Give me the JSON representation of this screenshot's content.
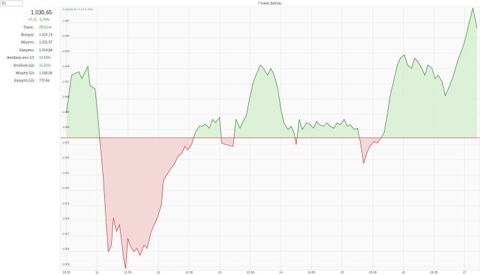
{
  "input_label": "Ετ.",
  "sidebar": {
    "last": "1.030,65",
    "change": "+7,21",
    "change_pct": "0,70%",
    "rows": [
      [
        "Όγκος:",
        "28,63 m"
      ],
      [
        "Άνοιγμα:",
        "1.022,74"
      ],
      [
        "Μέγιστη:",
        "1.031,97"
      ],
      [
        "Ελάχιστη:",
        "1.014,84"
      ],
      [
        "Απόδοση από 1/1",
        "10,60%"
      ],
      [
        "Απόδοση 52ε",
        "15,81%"
      ],
      [
        "Μέγιστη 52ε",
        "1.140,06"
      ],
      [
        "Ελάχιστη 52ε",
        "770,84"
      ]
    ]
  },
  "chart_data": {
    "type": "line",
    "title": "Γενικός Δείκτης",
    "annotation": "1.030,65 IS +7,21 0,70%",
    "x": [
      630,
      635,
      642,
      645,
      651,
      653,
      658,
      660,
      663,
      666,
      669,
      671,
      674,
      676,
      679,
      682,
      686,
      688,
      690,
      692,
      696,
      699,
      702,
      706,
      709,
      713,
      716,
      719,
      723,
      725,
      727,
      731,
      736,
      739,
      743,
      746,
      749,
      753,
      756,
      760,
      763,
      766,
      770,
      773,
      776,
      780,
      782,
      786,
      793,
      796,
      800,
      803,
      806,
      810,
      813,
      817,
      820,
      823,
      827,
      830,
      833,
      837,
      840,
      843,
      847,
      850,
      853,
      855,
      858,
      861,
      865,
      868,
      872,
      875,
      878,
      882,
      885,
      888,
      892,
      895,
      898,
      902,
      905,
      908,
      912,
      915,
      918,
      921,
      924,
      927,
      931,
      934,
      937,
      941,
      944,
      947,
      951,
      954,
      957,
      961,
      964,
      968,
      971,
      974,
      978,
      981,
      984,
      988,
      991,
      994,
      998,
      1001,
      1004,
      1008,
      1011,
      1014,
      1018,
      1021,
      1024,
      1028,
      1030,
      1032
    ],
    "values": [
      1025.11,
      1027.56,
      1027.79,
      1027.34,
      1028.14,
      1026.89,
      1026.67,
      1025.33,
      1023.1,
      1020.87,
      1017.74,
      1015.96,
      1016.4,
      1018.19,
      1017.29,
      1017.74,
      1015.51,
      1014.84,
      1016.85,
      1016.4,
      1015.96,
      1016.18,
      1015.73,
      1016.4,
      1016.18,
      1017.29,
      1017.74,
      1018.19,
      1019.08,
      1020.64,
      1020.87,
      1021.31,
      1021.76,
      1022.21,
      1022.43,
      1022.88,
      1022.65,
      1023.1,
      1023.77,
      1024.21,
      1024.21,
      1024.35,
      1024.08,
      1024.66,
      1024.44,
      1024.79,
      1023.1,
      1023.01,
      1022.88,
      1024.66,
      1024.08,
      1024.53,
      1024.88,
      1026.22,
      1027.12,
      1027.79,
      1028.23,
      1028.01,
      1027.56,
      1028.01,
      1027.65,
      1026.67,
      1025.33,
      1024.44,
      1023.99,
      1024.21,
      1023.77,
      1023.01,
      1024.66,
      1023.99,
      1024.44,
      1024.35,
      1024.08,
      1024.53,
      1024.3,
      1024.21,
      1024.44,
      1024.21,
      1024.08,
      1024.44,
      1024.3,
      1024.66,
      1024.21,
      1024.3,
      1023.99,
      1024.08,
      1023.1,
      1021.76,
      1022.43,
      1022.88,
      1023.19,
      1023.1,
      1023.32,
      1023.77,
      1024.88,
      1026.22,
      1027.34,
      1028.23,
      1028.68,
      1028.9,
      1028.23,
      1028.01,
      1028.68,
      1028.46,
      1028.01,
      1027.56,
      1028.23,
      1028.01,
      1027.34,
      1027.56,
      1027.12,
      1026.22,
      1026.67,
      1027.34,
      1028.01,
      1028.68,
      1029.35,
      1030.02,
      1030.91,
      1031.97,
      1031.36,
      1030.65
    ],
    "reference_line": 1023.44,
    "color": "#2f7d2f",
    "fill_color": "#d8f0d3",
    "below_color": "#c83232",
    "below_fill_color": "#f3d3d3",
    "xlim": [
      624,
      1035
    ],
    "ylim": [
      1014.75,
      1032.05
    ],
    "grid": true,
    "xticks": [
      {
        "value": 630,
        "label": "10:30"
      },
      {
        "value": 660,
        "label": "11"
      },
      {
        "value": 690,
        "label": "11:30"
      },
      {
        "value": 720,
        "label": "12"
      },
      {
        "value": 750,
        "label": "12:30"
      },
      {
        "value": 780,
        "label": "13"
      },
      {
        "value": 810,
        "label": "13:30"
      },
      {
        "value": 840,
        "label": "14"
      },
      {
        "value": 870,
        "label": "14:30"
      },
      {
        "value": 900,
        "label": "15"
      },
      {
        "value": 930,
        "label": "15:30"
      },
      {
        "value": 960,
        "label": "16"
      },
      {
        "value": 990,
        "label": "16:30"
      },
      {
        "value": 1020,
        "label": "17"
      }
    ],
    "yticks": [
      {
        "value": 1015,
        "label": "1.015"
      },
      {
        "value": 1016,
        "label": "1.016"
      },
      {
        "value": 1017,
        "label": "1.017"
      },
      {
        "value": 1018,
        "label": "1.018"
      },
      {
        "value": 1019,
        "label": "1.019"
      },
      {
        "value": 1020,
        "label": "1.020"
      },
      {
        "value": 1021,
        "label": "1.021"
      },
      {
        "value": 1022,
        "label": "1.022"
      },
      {
        "value": 1023,
        "label": "1.023"
      },
      {
        "value": 1024,
        "label": "1.024"
      },
      {
        "value": 1025,
        "label": "1.025"
      },
      {
        "value": 1026,
        "label": "1.026"
      },
      {
        "value": 1027,
        "label": "1.027"
      },
      {
        "value": 1028,
        "label": "1.028"
      },
      {
        "value": 1029,
        "label": "1.029"
      },
      {
        "value": 1030,
        "label": "1.030"
      },
      {
        "value": 1031,
        "label": "1.031"
      }
    ]
  }
}
